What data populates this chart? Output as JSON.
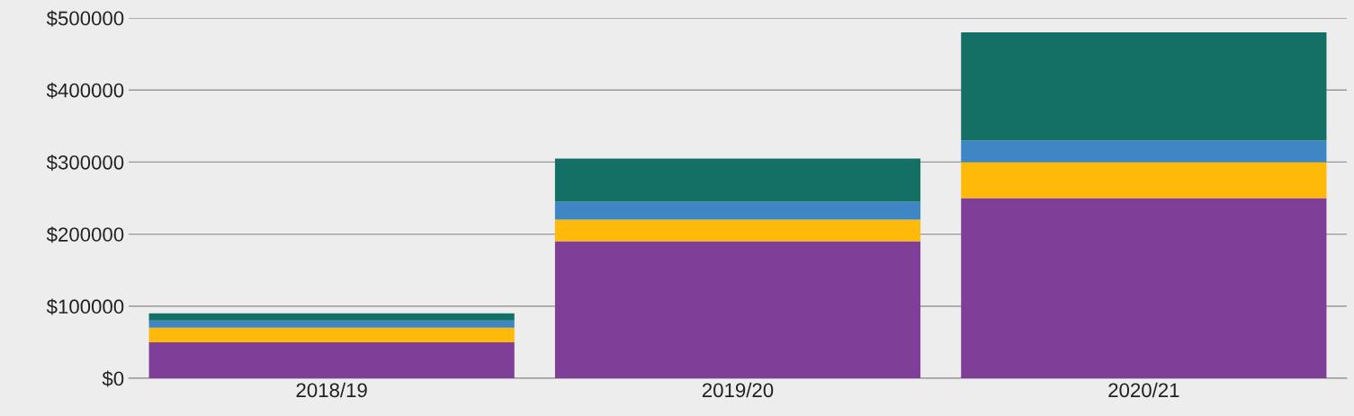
{
  "chart_data": {
    "type": "bar",
    "stacked": true,
    "categories": [
      "2018/19",
      "2019/20",
      "2020/21"
    ],
    "series": [
      {
        "color": "#7f3f98",
        "values": [
          50000,
          190000,
          250000
        ]
      },
      {
        "color": "#ffb909",
        "values": [
          20000,
          30000,
          50000
        ]
      },
      {
        "color": "#3f87c4",
        "values": [
          10000,
          25000,
          30000
        ]
      },
      {
        "color": "#147064",
        "values": [
          10000,
          60000,
          150000
        ]
      }
    ],
    "ylim": [
      0,
      500000
    ],
    "yticks": [
      {
        "value": 0,
        "label": "$0"
      },
      {
        "value": 100000,
        "label": "$100000"
      },
      {
        "value": 200000,
        "label": "$200000"
      },
      {
        "value": 300000,
        "label": "$300000"
      },
      {
        "value": 400000,
        "label": "$400000"
      },
      {
        "value": 500000,
        "label": "$500000"
      }
    ],
    "grid": "y"
  }
}
